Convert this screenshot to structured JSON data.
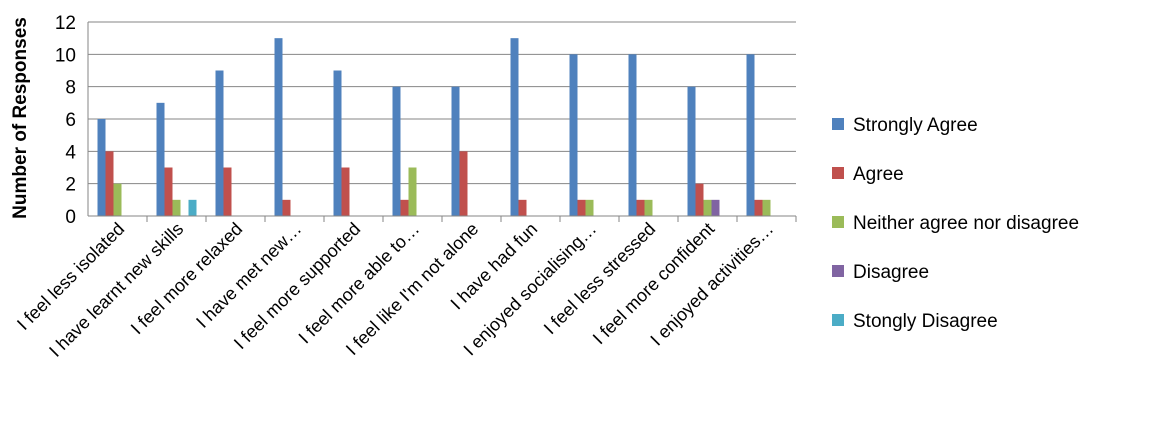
{
  "chart_data": {
    "type": "bar",
    "title": "",
    "xlabel": "",
    "ylabel": "Number of Responses",
    "ylim": [
      0,
      12
    ],
    "yticks": [
      0,
      2,
      4,
      6,
      8,
      10,
      12
    ],
    "grid": true,
    "legend_position": "right",
    "categories": [
      "I feel less isolated",
      "I have learnt new skills",
      "I feel more relaxed",
      "I have met new…",
      "I feel more supported",
      "I feel more able to…",
      "I feel like I'm not alone",
      "I have had fun",
      "I enjoyed socialising…",
      "I feel less stressed",
      "I feel more confident",
      "I enjoyed activities…"
    ],
    "series": [
      {
        "name": "Strongly Agree",
        "color": "#4F81BD",
        "values": [
          6,
          7,
          9,
          11,
          9,
          8,
          8,
          11,
          10,
          10,
          8,
          10
        ]
      },
      {
        "name": "Agree",
        "color": "#C0504D",
        "values": [
          4,
          3,
          3,
          1,
          3,
          1,
          4,
          1,
          1,
          1,
          2,
          1
        ]
      },
      {
        "name": "Neither agree nor disagree",
        "color": "#9BBB59",
        "values": [
          2,
          1,
          0,
          0,
          0,
          3,
          0,
          0,
          1,
          1,
          1,
          1
        ]
      },
      {
        "name": "Disagree",
        "color": "#8064A2",
        "values": [
          0,
          0,
          0,
          0,
          0,
          0,
          0,
          0,
          0,
          0,
          1,
          0
        ]
      },
      {
        "name": "Stongly Disagree",
        "color": "#4BACC6",
        "values": [
          0,
          1,
          0,
          0,
          0,
          0,
          0,
          0,
          0,
          0,
          0,
          0
        ]
      }
    ]
  }
}
